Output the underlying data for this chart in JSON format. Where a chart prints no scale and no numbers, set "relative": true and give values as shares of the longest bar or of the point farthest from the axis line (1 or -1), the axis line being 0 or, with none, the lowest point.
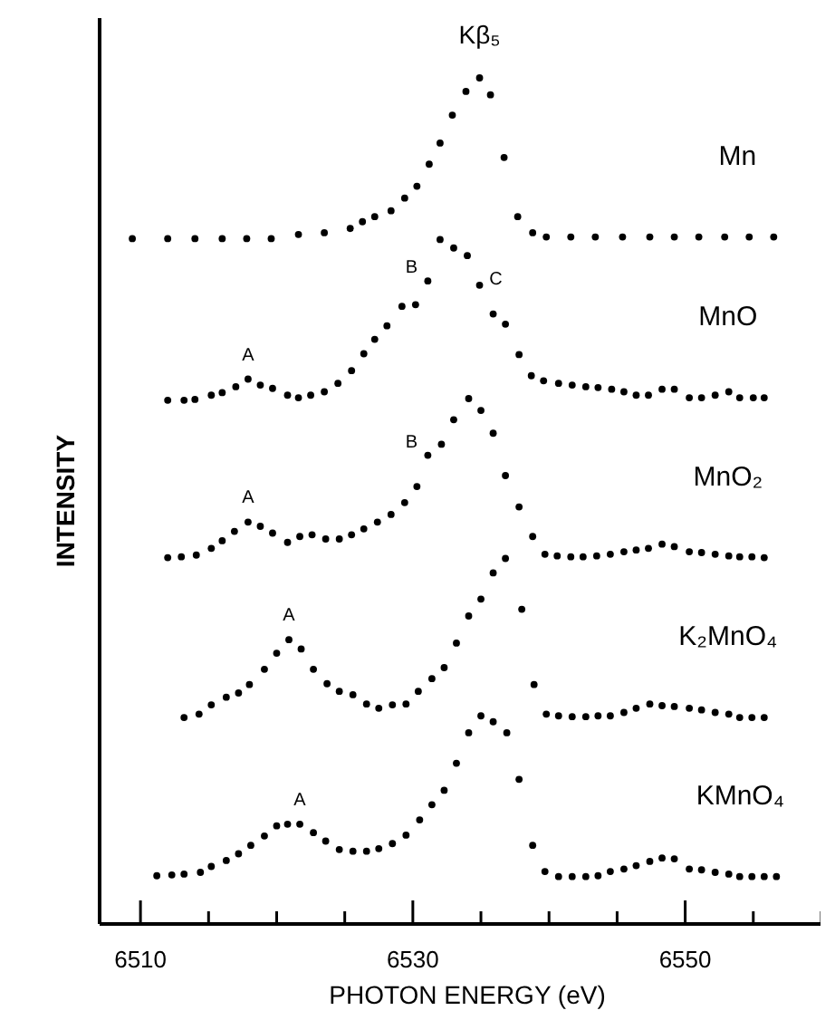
{
  "chart_data": {
    "type": "scatter",
    "relative": true,
    "xlabel": "PHOTON ENERGY (eV)",
    "ylabel": "INTENSITY",
    "marker": "circle",
    "xlim": [
      6507,
      6561
    ],
    "xticks": [
      6510,
      {
        "value": 6515,
        "label": null
      },
      {
        "value": 6520,
        "label": null
      },
      {
        "value": 6525,
        "label": null
      },
      6530,
      {
        "value": 6535,
        "label": null
      },
      {
        "value": 6540,
        "label": null
      },
      {
        "value": 6545,
        "label": null
      },
      6550,
      {
        "value": 6555,
        "label": null
      },
      {
        "value": 6560,
        "label": null
      }
    ],
    "tick_labels": "x",
    "series": [
      {
        "name": "Mn",
        "color": "#000000",
        "x": [
          6509.4,
          6512.0,
          6514.0,
          6516.0,
          6517.8,
          6519.6,
          6521.6,
          6523.5,
          6525.4,
          6526.3,
          6527.2,
          6528.4,
          6529.4,
          6530.3,
          6531.2,
          6532.0,
          6532.9,
          6533.9,
          6534.9,
          6535.7,
          6536.7,
          6537.7,
          6538.8,
          6539.8,
          6541.6,
          6543.4,
          6545.4,
          6547.4,
          6549.2,
          6551.0,
          6552.9,
          6554.7,
          6556.5
        ],
        "values": [
          0.81,
          0.81,
          0.81,
          0.81,
          0.81,
          0.81,
          0.815,
          0.817,
          0.822,
          0.83,
          0.836,
          0.843,
          0.858,
          0.872,
          0.898,
          0.923,
          0.956,
          0.984,
          1.0,
          0.98,
          0.906,
          0.836,
          0.817,
          0.812,
          0.812,
          0.812,
          0.812,
          0.812,
          0.812,
          0.812,
          0.812,
          0.812,
          0.812
        ]
      },
      {
        "name": "MnO",
        "color": "#000000",
        "x": [
          6512.0,
          6513.2,
          6514.0,
          6515.2,
          6516.0,
          6517.0,
          6517.9,
          6518.8,
          6519.7,
          6520.8,
          6521.6,
          6522.5,
          6523.5,
          6524.5,
          6525.5,
          6526.4,
          6527.2,
          6528.1,
          6529.2,
          6530.2,
          6531.1,
          6532.0,
          6533.0,
          6534.0,
          6534.9,
          6535.9,
          6536.8,
          6537.8,
          6538.7,
          6539.6,
          6540.7,
          6541.7,
          6542.7,
          6543.6,
          6544.6,
          6545.5,
          6546.4,
          6547.3,
          6548.3,
          6549.2,
          6550.3,
          6551.2,
          6552.2,
          6553.2,
          6554.0,
          6555.0,
          6555.8
        ],
        "values": [
          0.619,
          0.619,
          0.62,
          0.625,
          0.628,
          0.635,
          0.644,
          0.637,
          0.633,
          0.625,
          0.622,
          0.625,
          0.629,
          0.639,
          0.654,
          0.674,
          0.691,
          0.707,
          0.73,
          0.732,
          0.76,
          0.809,
          0.799,
          0.79,
          0.755,
          0.721,
          0.709,
          0.673,
          0.648,
          0.642,
          0.639,
          0.637,
          0.635,
          0.634,
          0.632,
          0.629,
          0.625,
          0.625,
          0.632,
          0.632,
          0.622,
          0.622,
          0.625,
          0.629,
          0.622,
          0.622,
          0.622
        ]
      },
      {
        "name": "MnO₂",
        "color": "#000000",
        "x": [
          6512.0,
          6513.0,
          6514.1,
          6515.2,
          6516.0,
          6516.9,
          6517.9,
          6518.8,
          6519.7,
          6520.8,
          6521.7,
          6522.6,
          6523.6,
          6524.6,
          6525.5,
          6526.4,
          6527.4,
          6528.4,
          6529.4,
          6530.3,
          6531.1,
          6532.1,
          6533.0,
          6534.1,
          6535.0,
          6535.9,
          6536.8,
          6537.8,
          6538.8,
          6539.7,
          6540.6,
          6541.6,
          6542.5,
          6543.5,
          6544.5,
          6545.5,
          6546.4,
          6547.3,
          6548.3,
          6549.2,
          6550.3,
          6551.2,
          6552.2,
          6553.2,
          6554.0,
          6554.9,
          6555.8
        ],
        "values": [
          0.433,
          0.434,
          0.436,
          0.444,
          0.453,
          0.464,
          0.475,
          0.47,
          0.462,
          0.451,
          0.458,
          0.46,
          0.455,
          0.455,
          0.46,
          0.467,
          0.475,
          0.484,
          0.498,
          0.517,
          0.554,
          0.567,
          0.596,
          0.621,
          0.607,
          0.58,
          0.53,
          0.493,
          0.458,
          0.437,
          0.435,
          0.434,
          0.434,
          0.435,
          0.437,
          0.44,
          0.442,
          0.444,
          0.449,
          0.446,
          0.44,
          0.439,
          0.437,
          0.435,
          0.434,
          0.434,
          0.433
        ]
      },
      {
        "name": "K₂MnO₄",
        "color": "#000000",
        "x": [
          6513.2,
          6514.3,
          6515.2,
          6516.3,
          6517.2,
          6518.0,
          6519.1,
          6520.0,
          6520.9,
          6521.8,
          6522.7,
          6523.7,
          6524.6,
          6525.6,
          6526.6,
          6527.5,
          6528.5,
          6529.5,
          6530.4,
          6531.4,
          6532.3,
          6533.2,
          6534.1,
          6535.0,
          6535.9,
          6536.8,
          6538.0,
          6538.9,
          6539.8,
          6540.7,
          6541.7,
          6542.7,
          6543.6,
          6544.5,
          6545.5,
          6546.4,
          6547.4,
          6548.3,
          6549.2,
          6550.3,
          6551.2,
          6552.2,
          6553.2,
          6554.0,
          6554.9,
          6555.8
        ],
        "values": [
          0.244,
          0.248,
          0.259,
          0.268,
          0.273,
          0.283,
          0.301,
          0.32,
          0.336,
          0.325,
          0.301,
          0.284,
          0.275,
          0.271,
          0.26,
          0.255,
          0.259,
          0.26,
          0.275,
          0.29,
          0.303,
          0.332,
          0.364,
          0.384,
          0.415,
          0.432,
          0.372,
          0.283,
          0.248,
          0.246,
          0.245,
          0.245,
          0.246,
          0.246,
          0.25,
          0.255,
          0.26,
          0.258,
          0.257,
          0.255,
          0.253,
          0.25,
          0.248,
          0.244,
          0.244,
          0.244
        ]
      },
      {
        "name": "KMnO₄",
        "color": "#000000",
        "x": [
          6511.2,
          6512.3,
          6513.2,
          6514.4,
          6515.2,
          6516.3,
          6517.2,
          6518.1,
          6519.1,
          6520.0,
          6520.8,
          6521.7,
          6522.7,
          6523.6,
          6524.6,
          6525.6,
          6526.6,
          6527.5,
          6528.5,
          6529.5,
          6530.5,
          6531.4,
          6532.3,
          6533.2,
          6534.1,
          6535.0,
          6535.9,
          6536.9,
          6537.8,
          6538.8,
          6539.7,
          6540.7,
          6541.7,
          6542.7,
          6543.6,
          6544.5,
          6545.5,
          6546.4,
          6547.4,
          6548.3,
          6549.2,
          6550.3,
          6551.2,
          6552.2,
          6553.2,
          6554.0,
          6554.9,
          6555.8,
          6556.7
        ],
        "values": [
          0.057,
          0.058,
          0.059,
          0.061,
          0.068,
          0.075,
          0.083,
          0.093,
          0.104,
          0.116,
          0.118,
          0.118,
          0.108,
          0.098,
          0.088,
          0.086,
          0.086,
          0.089,
          0.095,
          0.105,
          0.123,
          0.141,
          0.158,
          0.19,
          0.226,
          0.246,
          0.239,
          0.226,
          0.171,
          0.093,
          0.062,
          0.056,
          0.056,
          0.056,
          0.057,
          0.062,
          0.065,
          0.069,
          0.074,
          0.078,
          0.077,
          0.065,
          0.064,
          0.061,
          0.059,
          0.056,
          0.056,
          0.056,
          0.056
        ]
      }
    ],
    "annotations": [
      {
        "text": "Kβ₅",
        "x": 6534.9,
        "y": 1.0
      },
      {
        "text": "A",
        "x": 6517.9,
        "y": 0.644
      },
      {
        "text": "B",
        "x": 6531.1,
        "y": 0.76
      },
      {
        "text": "C",
        "x": 6534.9,
        "y": 0.755
      },
      {
        "text": "A",
        "x": 6517.9,
        "y": 0.475
      },
      {
        "text": "B",
        "x": 6531.1,
        "y": 0.554
      },
      {
        "text": "A",
        "x": 6520.9,
        "y": 0.336
      },
      {
        "text": "A",
        "x": 6521.7,
        "y": 0.118
      }
    ]
  }
}
